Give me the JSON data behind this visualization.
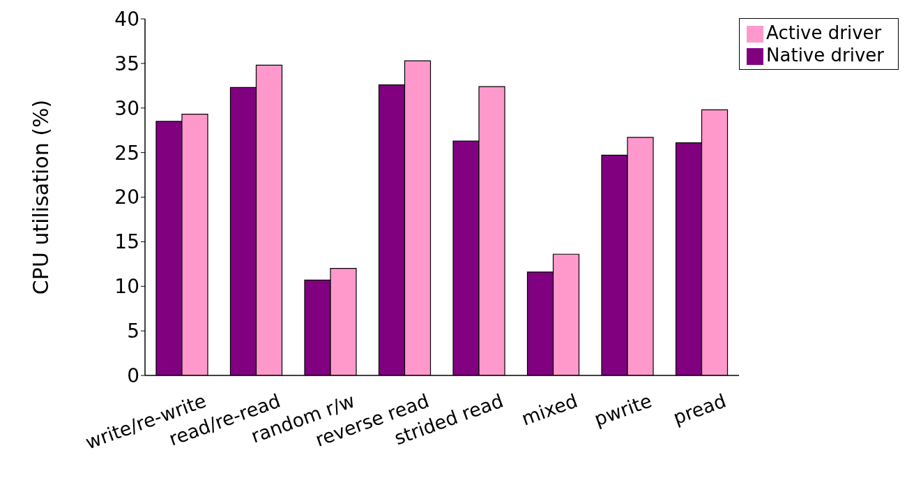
{
  "chart_data": {
    "type": "bar",
    "ylabel": "CPU utilisation (%)",
    "categories": [
      "write/re-write",
      "read/re-read",
      "random r/w",
      "reverse read",
      "strided read",
      "mixed",
      "pwrite",
      "pread"
    ],
    "series": [
      {
        "name": "Native driver",
        "color": "#800080",
        "values": [
          28.5,
          32.3,
          10.7,
          32.6,
          26.3,
          11.6,
          24.7,
          26.1
        ]
      },
      {
        "name": "Active driver",
        "color": "#ff99cc",
        "values": [
          29.3,
          34.8,
          12.0,
          35.3,
          32.4,
          13.6,
          26.7,
          29.8
        ]
      }
    ],
    "ylim": [
      0,
      40
    ],
    "yticks": [
      0,
      5,
      10,
      15,
      20,
      25,
      30,
      35,
      40
    ],
    "grid": false,
    "legend": "top right"
  }
}
